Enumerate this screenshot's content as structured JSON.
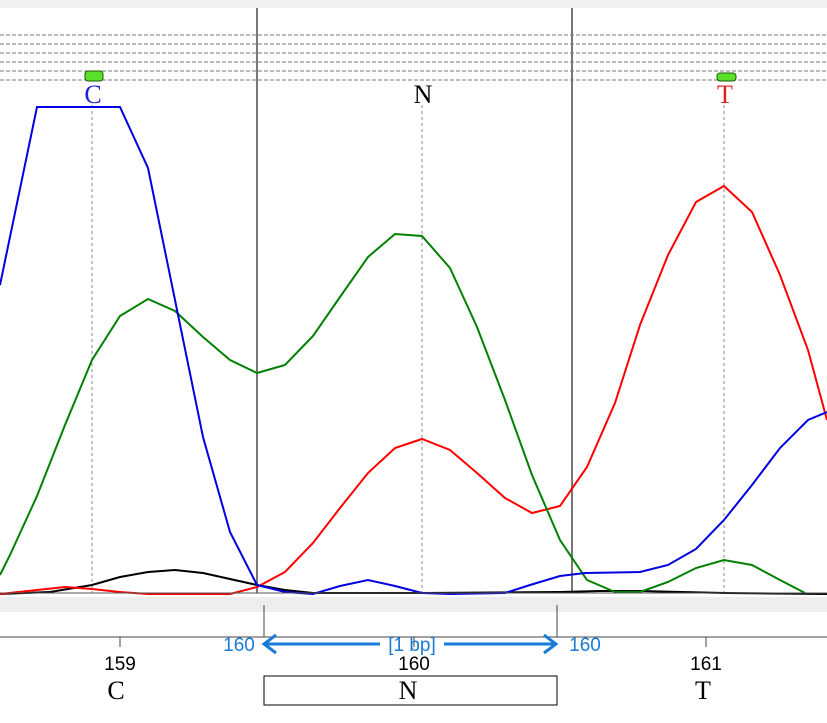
{
  "base_calls": {
    "top": [
      {
        "label": "C",
        "color": "#2020e0"
      },
      {
        "label": "N",
        "color": "#000000"
      },
      {
        "label": "T",
        "color": "#e02020"
      }
    ]
  },
  "ruler": {
    "positions": [
      "159",
      "160",
      "161"
    ],
    "bases": [
      "C",
      "N",
      "T"
    ]
  },
  "selection": {
    "start": "160",
    "length": "[1 bp]",
    "end": "160"
  }
}
